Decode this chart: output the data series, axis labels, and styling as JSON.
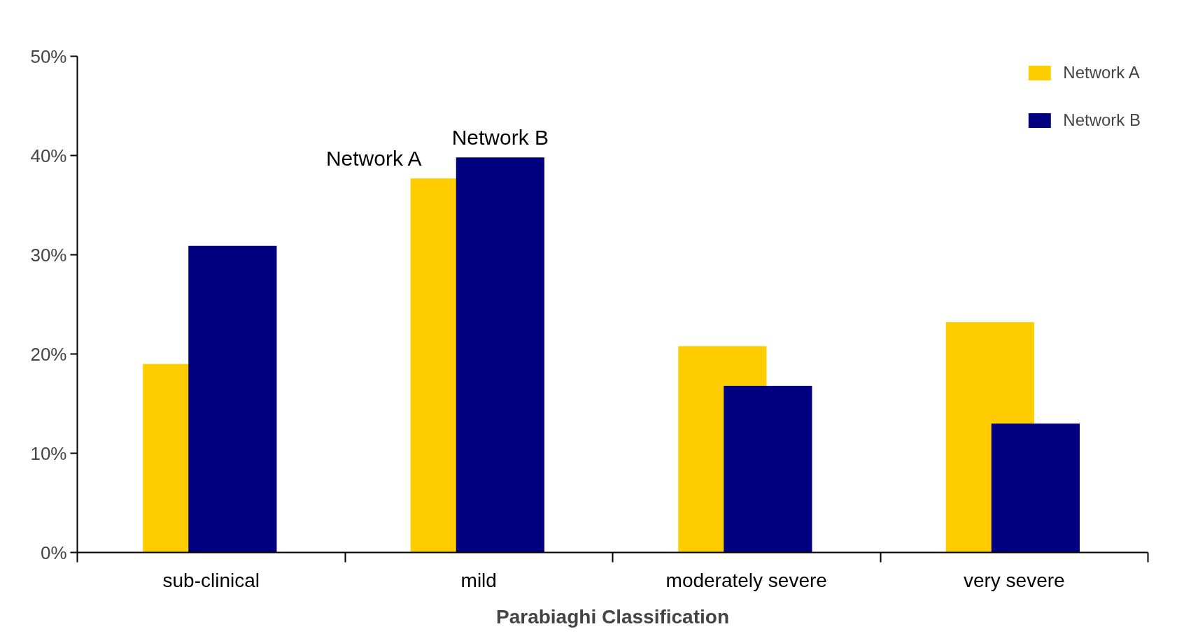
{
  "chart_data": {
    "type": "bar",
    "xlabel": "Parabiaghi Classification",
    "categories": [
      "sub-clinical",
      "mild",
      "moderately severe",
      "very severe"
    ],
    "series": [
      {
        "name": "Network A",
        "color": "#ffcc00",
        "values": [
          19.0,
          37.7,
          20.8,
          23.2
        ]
      },
      {
        "name": "Network B",
        "color": "#000080",
        "values": [
          30.9,
          39.8,
          16.8,
          13.0
        ]
      }
    ],
    "ylim": [
      0,
      50
    ],
    "yticks": [
      {
        "value": 0,
        "label": "0%"
      },
      {
        "value": 10,
        "label": "10%"
      },
      {
        "value": 20,
        "label": "20%"
      },
      {
        "value": 30,
        "label": "30%"
      },
      {
        "value": 40,
        "label": "40%"
      },
      {
        "value": 50,
        "label": "50%"
      }
    ],
    "annotations": [
      {
        "text": "Network A",
        "x": "mild",
        "y": 37.7
      },
      {
        "text": "Network B",
        "x": "mild",
        "y": 39.8
      }
    ],
    "grid": false,
    "legend": "top right"
  }
}
